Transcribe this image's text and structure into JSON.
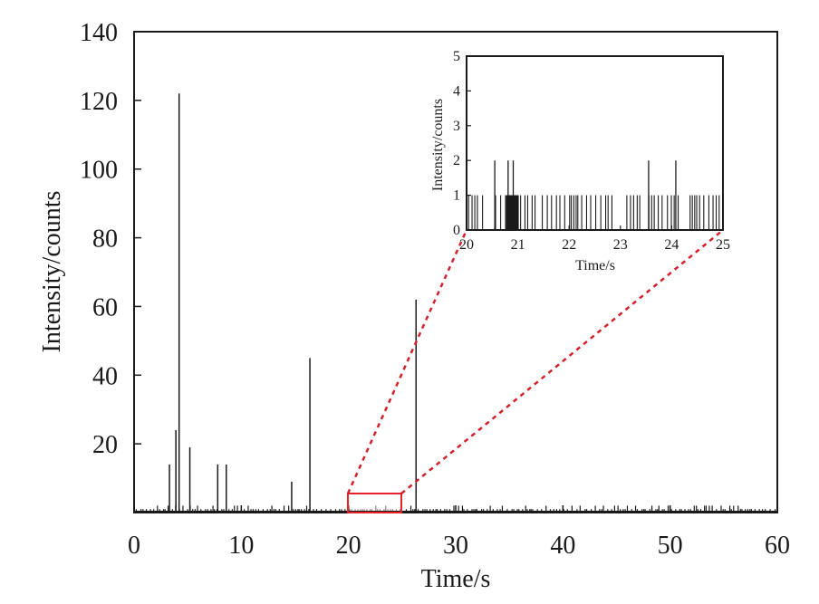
{
  "chart_data": [
    {
      "type": "bar",
      "role": "main",
      "xlabel": "Time/s",
      "ylabel": "Intensity/counts",
      "xlim": [
        0,
        60
      ],
      "ylim": [
        0,
        140
      ],
      "xticks": [
        "0",
        "10",
        "20",
        "30",
        "40",
        "50",
        "60"
      ],
      "yticks": [
        "20",
        "40",
        "60",
        "80",
        "100",
        "120",
        "140"
      ],
      "grid": false,
      "legend": "none",
      "colors": {
        "bars": "#1a1a1a",
        "zoom_box": "#e8202a",
        "connector": "#d4202a"
      },
      "highlight_region": {
        "x": [
          20,
          25
        ],
        "y": [
          0,
          6
        ]
      },
      "peaks": [
        {
          "x": 3.3,
          "y": 14
        },
        {
          "x": 3.9,
          "y": 24
        },
        {
          "x": 4.2,
          "y": 122
        },
        {
          "x": 5.2,
          "y": 19
        },
        {
          "x": 7.8,
          "y": 14
        },
        {
          "x": 8.6,
          "y": 14
        },
        {
          "x": 14.7,
          "y": 9
        },
        {
          "x": 16.4,
          "y": 45
        },
        {
          "x": 26.3,
          "y": 62
        }
      ],
      "baseline_counts": "dense pulses of 1-2 counts across 0-60 s"
    },
    {
      "type": "bar",
      "role": "inset",
      "xlabel": "Time/s",
      "ylabel": "Intensity/counts",
      "xlim": [
        20,
        25
      ],
      "ylim": [
        0,
        5
      ],
      "xticks": [
        "20",
        "21",
        "22",
        "23",
        "24",
        "25"
      ],
      "yticks": [
        "0",
        "1",
        "2",
        "3",
        "4",
        "5"
      ],
      "grid": false,
      "peaks_2_counts": [
        20.55,
        20.81,
        20.91,
        23.55,
        24.08
      ],
      "pulses_1_count": "dense pulses of 1 count between 20 and 25 s"
    }
  ]
}
